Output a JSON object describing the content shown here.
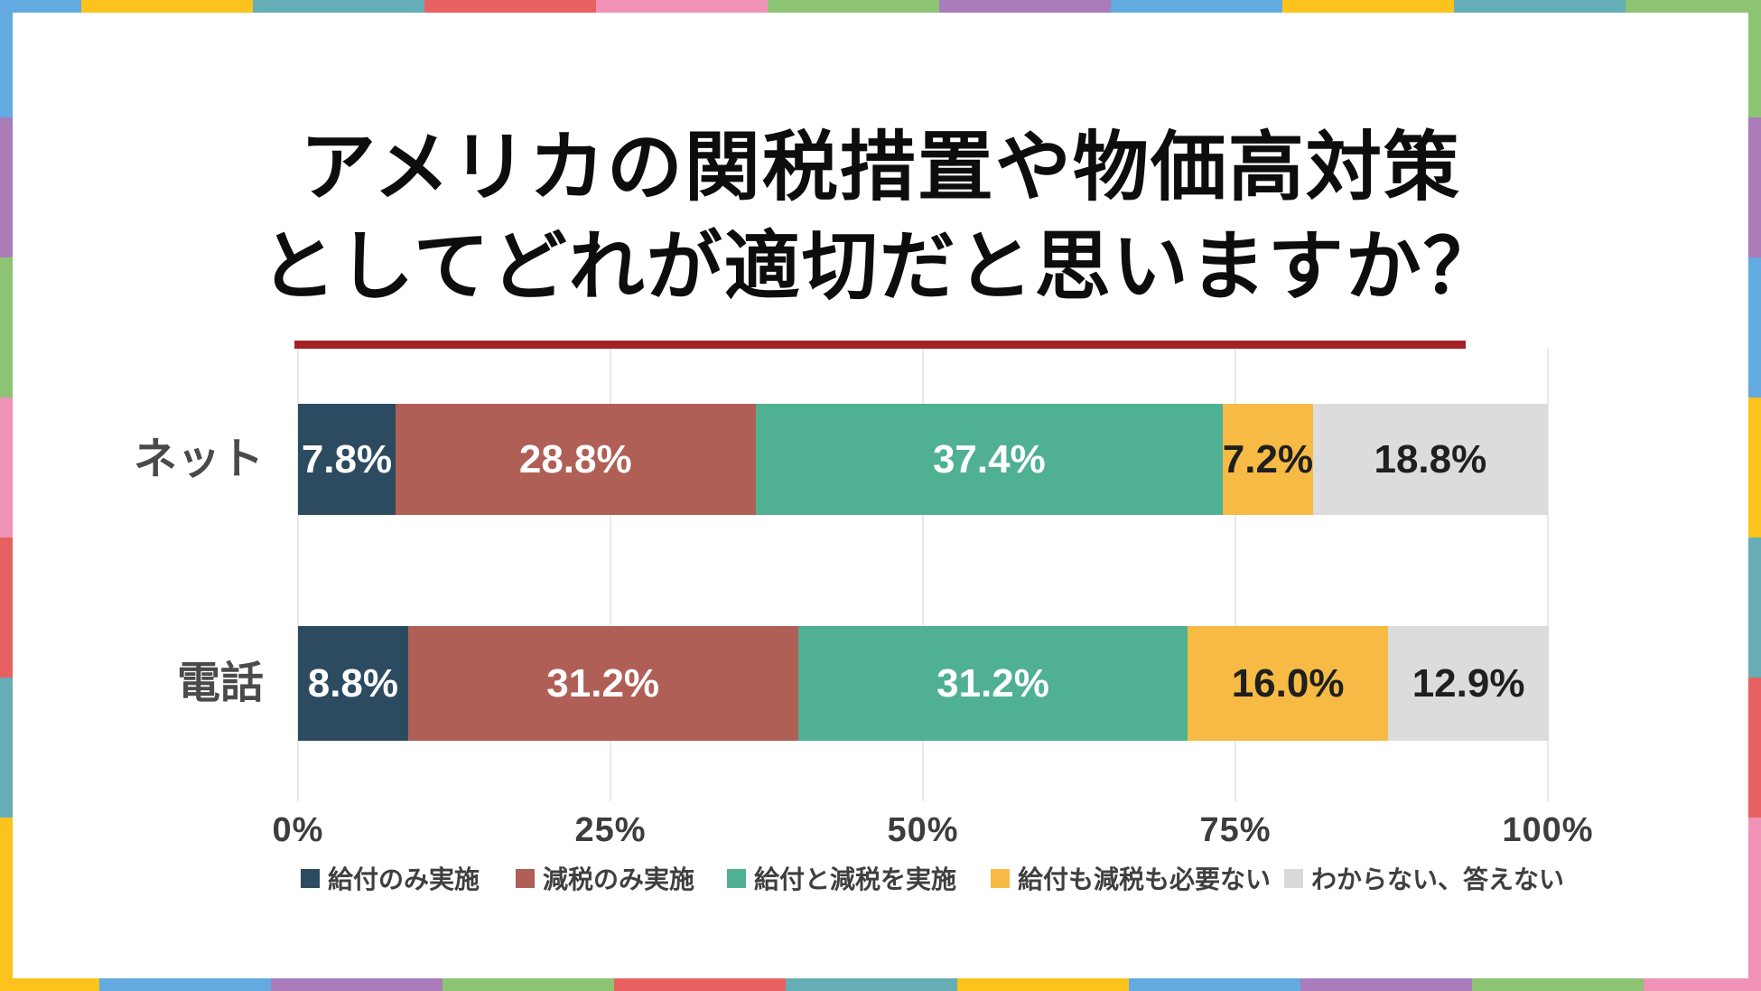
{
  "title": {
    "line1": "アメリカの関税措置や物価高対策",
    "line2": "としてどれが適切だと思いますか？"
  },
  "divider_color": "#a42125",
  "chart_data": {
    "type": "bar",
    "stacked": true,
    "orientation": "horizontal",
    "title": "アメリカの関税措置や物価高対策としてどれが適切だと思いますか？",
    "categories": [
      "ネット",
      "電話"
    ],
    "series": [
      {
        "name": "給付のみ実施",
        "color": "#2d4b60",
        "label_color": "#ffffff",
        "values": [
          7.8,
          8.8
        ]
      },
      {
        "name": "減税のみ実施",
        "color": "#b05f57",
        "label_color": "#ffffff",
        "values": [
          28.8,
          31.2
        ]
      },
      {
        "name": "給付と減税を実施",
        "color": "#50b093",
        "label_color": "#ffffff",
        "values": [
          37.4,
          31.2
        ]
      },
      {
        "name": "給付も減税も必要ない",
        "color": "#f6ba45",
        "label_color": "#1f1f1f",
        "values": [
          7.2,
          16.0
        ]
      },
      {
        "name": "わからない、答えない",
        "color": "#dcdcdc",
        "label_color": "#1f1f1f",
        "values": [
          18.8,
          12.9
        ]
      }
    ],
    "value_suffix": "%",
    "value_decimals": 1,
    "xlim": [
      0,
      100
    ],
    "xticks": [
      "0%",
      "25%",
      "50%",
      "75%",
      "100%"
    ],
    "grid": true,
    "legend_position": "bottom"
  },
  "frame": {
    "palette": {
      "blue": "#62aadf",
      "yellow": "#fbc31b",
      "teal": "#65aeb6",
      "red": "#e86161",
      "pink": "#f092b8",
      "green": "#8cc473",
      "purple": "#aa7cba"
    },
    "top": [
      {
        "c": "blue",
        "s": 90
      },
      {
        "c": "yellow",
        "s": 190
      },
      {
        "c": "teal",
        "s": 190
      },
      {
        "c": "red",
        "s": 190
      },
      {
        "c": "pink",
        "s": 190
      },
      {
        "c": "green",
        "s": 190
      },
      {
        "c": "purple",
        "s": 190
      },
      {
        "c": "blue",
        "s": 190
      },
      {
        "c": "yellow",
        "s": 190
      },
      {
        "c": "teal",
        "s": 190
      },
      {
        "c": "green",
        "s": 150
      }
    ],
    "bottom": [
      {
        "c": "yellow",
        "s": 110
      },
      {
        "c": "blue",
        "s": 190
      },
      {
        "c": "purple",
        "s": 190
      },
      {
        "c": "green",
        "s": 190
      },
      {
        "c": "red",
        "s": 190
      },
      {
        "c": "teal",
        "s": 190
      },
      {
        "c": "yellow",
        "s": 190
      },
      {
        "c": "blue",
        "s": 190
      },
      {
        "c": "purple",
        "s": 190
      },
      {
        "c": "green",
        "s": 190
      },
      {
        "c": "pink",
        "s": 130
      }
    ],
    "left": [
      {
        "c": "blue",
        "s": 130
      },
      {
        "c": "purple",
        "s": 155
      },
      {
        "c": "green",
        "s": 155
      },
      {
        "c": "pink",
        "s": 155
      },
      {
        "c": "red",
        "s": 155
      },
      {
        "c": "teal",
        "s": 155
      },
      {
        "c": "yellow",
        "s": 192
      }
    ],
    "right": [
      {
        "c": "green",
        "s": 130
      },
      {
        "c": "purple",
        "s": 155
      },
      {
        "c": "blue",
        "s": 155
      },
      {
        "c": "yellow",
        "s": 155
      },
      {
        "c": "teal",
        "s": 155
      },
      {
        "c": "red",
        "s": 155
      },
      {
        "c": "pink",
        "s": 192
      }
    ]
  }
}
